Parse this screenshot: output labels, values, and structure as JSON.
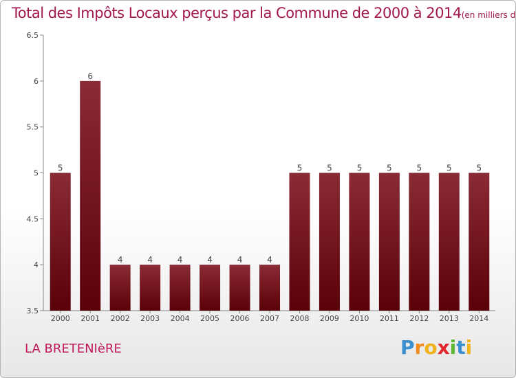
{
  "chart_data": {
    "type": "bar",
    "title": "Total des Impôts Locaux perçus par la Commune de 2000 à 2014",
    "subtitle": "(en milliers d'€)",
    "categories": [
      "2000",
      "2001",
      "2002",
      "2003",
      "2004",
      "2005",
      "2006",
      "2007",
      "2008",
      "2009",
      "2010",
      "2011",
      "2012",
      "2013",
      "2014"
    ],
    "values": [
      5,
      6,
      4,
      4,
      4,
      4,
      4,
      4,
      5,
      5,
      5,
      5,
      5,
      5,
      5
    ],
    "data_labels": [
      "5",
      "6",
      "4",
      "4",
      "4",
      "4",
      "4",
      "4",
      "5",
      "5",
      "5",
      "5",
      "5",
      "5",
      "5"
    ],
    "ylim": [
      3.5,
      6.5
    ],
    "yticks": [
      "3.5",
      "4",
      "4.5",
      "5",
      "5.5",
      "6",
      "6.5"
    ],
    "ytick_values": [
      3.5,
      4,
      4.5,
      5,
      5.5,
      6,
      6.5
    ],
    "grid": false,
    "bar_color": "#7a1f2a"
  },
  "commune": "LA BRETENIèRE",
  "logo": {
    "letters": [
      "P",
      "r",
      "o",
      "x",
      "i",
      "t",
      "i"
    ],
    "colors": [
      "#3a8fd0",
      "#f28c1c",
      "#f2b21c",
      "#e0262c",
      "#5cb531",
      "#3a8fd0",
      "#f2b21c"
    ]
  }
}
